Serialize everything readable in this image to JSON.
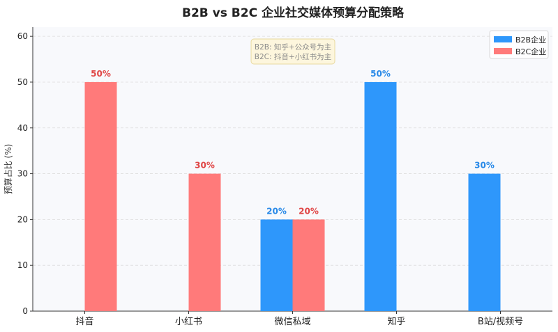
{
  "chart_data": {
    "type": "bar",
    "title": "B2B vs B2C 企业社交媒体预算分配策略",
    "xlabel": "",
    "ylabel": "预算占比 (%)",
    "categories": [
      "抖音",
      "小红书",
      "微信私域",
      "知乎",
      "B站/视频号"
    ],
    "series": [
      {
        "name": "B2B企业",
        "color": "#2e97fb",
        "label_color": "#2a8ae8",
        "values": [
          null,
          null,
          20,
          50,
          30
        ]
      },
      {
        "name": "B2C企业",
        "color": "#ff7a7a",
        "label_color": "#e04646",
        "values": [
          50,
          30,
          20,
          null,
          null
        ]
      }
    ],
    "value_labels": [
      [
        null,
        null,
        "20%",
        "50%",
        "30%"
      ],
      [
        "50%",
        "30%",
        "20%",
        null,
        null
      ]
    ],
    "ylim": [
      0,
      62
    ],
    "yticks": [
      0,
      10,
      20,
      30,
      40,
      50,
      60
    ],
    "ytick_labels": [
      "0",
      "10",
      "20",
      "30",
      "40",
      "50",
      "60"
    ],
    "grid": true,
    "legend_position": "top-right",
    "annotation": {
      "lines": [
        "B2B: 知乎+公众号为主",
        "B2C: 抖音+小红书为主"
      ],
      "position": "top-center"
    },
    "colors": {
      "plot_background": "#f8f9fc",
      "annotation_background": "#fdf6dd",
      "annotation_border": "#e8d9a0",
      "annotation_text": "#8a8a8a",
      "grid": "#dcdcdc",
      "axis": "#333333",
      "text": "#222222"
    }
  }
}
